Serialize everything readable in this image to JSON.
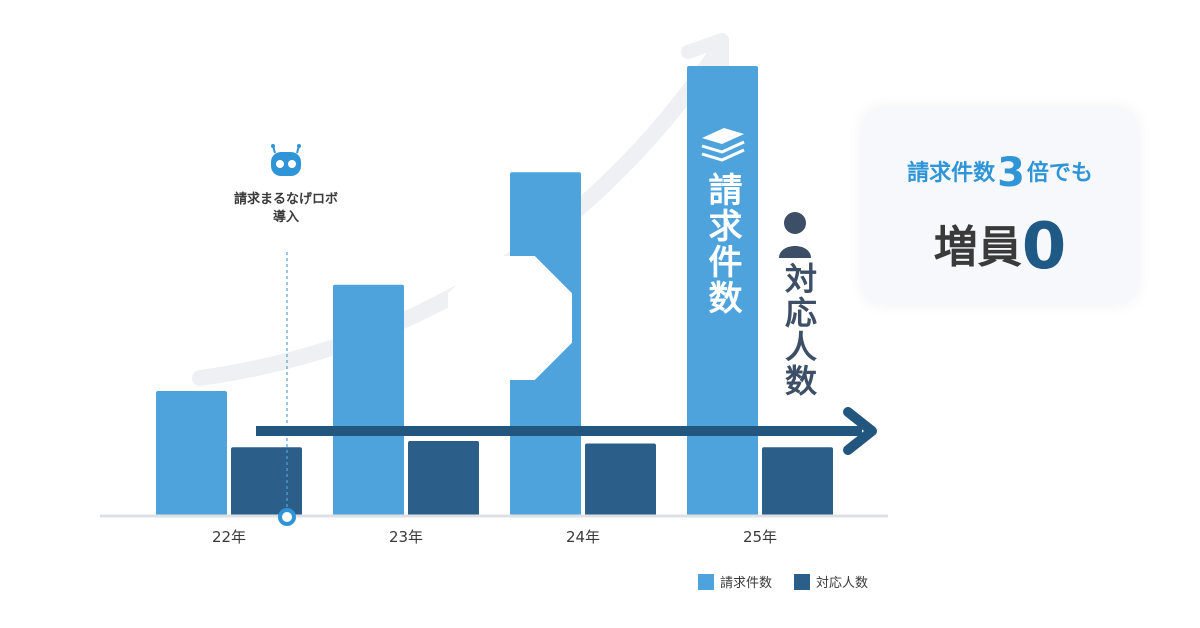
{
  "chart_data": {
    "type": "bar",
    "categories": [
      "22年",
      "23年",
      "24年",
      "25年"
    ],
    "series": [
      {
        "name": "請求件数",
        "color": "#4fa3dd",
        "values": [
          1,
          1.85,
          2.75,
          3.6
        ]
      },
      {
        "name": "対応人数",
        "color": "#2b5f8a",
        "values": [
          0.55,
          0.6,
          0.58,
          0.55
        ]
      }
    ],
    "ylim": [
      0,
      4
    ],
    "grid": false,
    "legend_position": "bottom-right",
    "annotations": {
      "robot_line1": "請求まるなげロボ",
      "robot_line2": "導入",
      "requests_label": "請求件数",
      "staff_label": "対応人数"
    },
    "icons": [
      "robot-icon",
      "documents-icon",
      "person-icon"
    ]
  },
  "callout": {
    "line1_prefix": "請求件数",
    "line1_number": "3",
    "line1_suffix": "倍でも",
    "line2_prefix": "増員",
    "line2_number": "0"
  },
  "colors": {
    "request_bar": "#4fa3dd",
    "staff_bar": "#2b5f8a",
    "arrow_light": "#eef0f3",
    "arrow_dark": "#23567f",
    "accent_text": "#2f95d6"
  }
}
